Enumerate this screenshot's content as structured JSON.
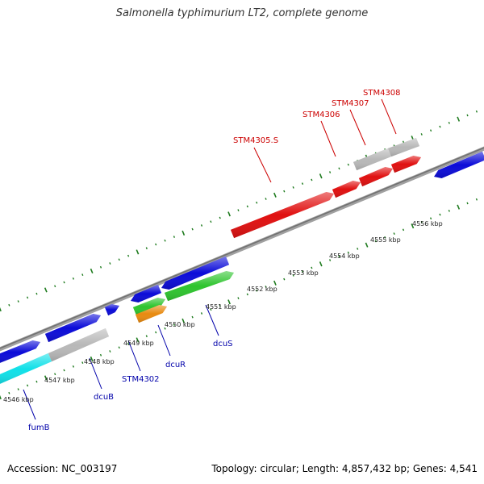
{
  "title": "Salmonella typhimurium LT2, complete genome",
  "footer": {
    "accession": "Accession: NC_003197",
    "summary": "Topology: circular; Length: 4,857,432 bp; Genes: 4,541"
  },
  "colors": {
    "backbone": "#808080",
    "tick": "#1e7b1e",
    "blue": "#0b0bd8",
    "red": "#e01010",
    "gray": "#b8b8b8",
    "green": "#2ec42e",
    "orange": "#e88a10",
    "cyan": "#10e0e8",
    "label_red": "#cc0000",
    "label_blue": "#0000aa"
  },
  "tick_labels": [
    "4546 kbp",
    "4547 kbp",
    "4548 kbp",
    "4549 kbp",
    "4550 kbp",
    "4551 kbp",
    "4552 kbp",
    "4553 kbp",
    "4554 kbp",
    "4555 kbp",
    "4556 kbp"
  ],
  "gene_labels": [
    {
      "text": "STM4308",
      "color": "red"
    },
    {
      "text": "STM4307",
      "color": "red"
    },
    {
      "text": "STM4306",
      "color": "red"
    },
    {
      "text": "STM4305.S",
      "color": "red"
    },
    {
      "text": "fumB",
      "color": "blue"
    },
    {
      "text": "dcuB",
      "color": "blue"
    },
    {
      "text": "STM4302",
      "color": "blue"
    },
    {
      "text": "dcuR",
      "color": "blue"
    },
    {
      "text": "dcuS",
      "color": "blue"
    }
  ]
}
